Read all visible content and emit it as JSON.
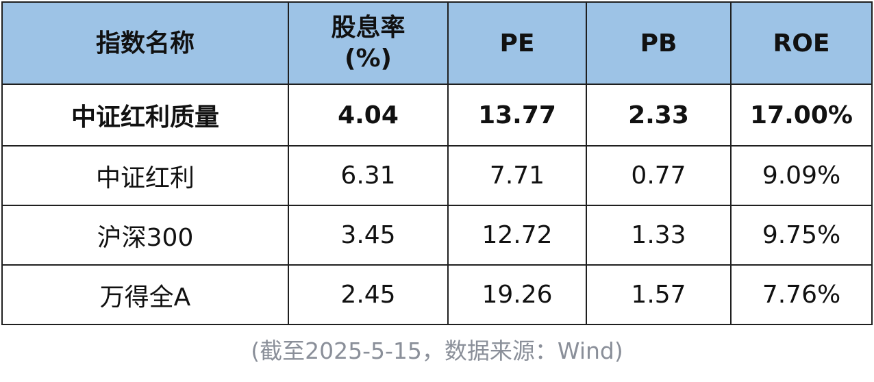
{
  "table": {
    "header": {
      "name": "指数名称",
      "dividend_line1": "股息率",
      "dividend_line2": "(%)",
      "pe": "PE",
      "pb": "PB",
      "roe": "ROE"
    },
    "header_color": "#9dc3e6",
    "rows": [
      {
        "name": "中证红利质量",
        "dividend": "4.04",
        "pe": "13.77",
        "pb": "2.33",
        "roe": "17.00%",
        "bold": true
      },
      {
        "name": "中证红利",
        "dividend": "6.31",
        "pe": "7.71",
        "pb": "0.77",
        "roe": "9.09%"
      },
      {
        "name": "沪深300",
        "dividend": "3.45",
        "pe": "12.72",
        "pb": "1.33",
        "roe": "9.75%"
      },
      {
        "name": "万得全A",
        "dividend": "2.45",
        "pe": "19.26",
        "pb": "1.57",
        "roe": "7.76%"
      }
    ]
  },
  "footnote": "(截至2025-5-15，数据来源：Wind)"
}
